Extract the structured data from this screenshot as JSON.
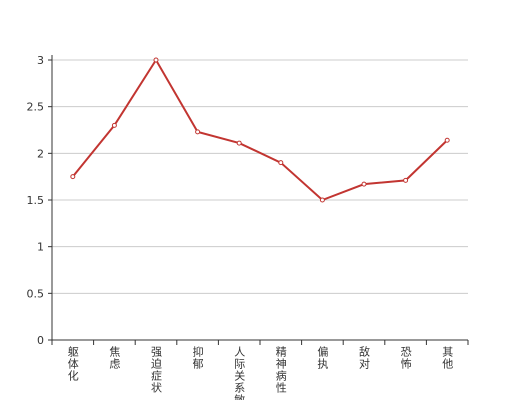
{
  "chart_data": {
    "type": "line",
    "categories": [
      "躯体化",
      "焦虑",
      "强迫症状",
      "抑郁",
      "人际关系敏感",
      "精神病性",
      "偏执",
      "敌对",
      "恐怖",
      "其他"
    ],
    "values": [
      1.75,
      2.3,
      3.0,
      2.23,
      2.11,
      1.9,
      1.5,
      1.67,
      1.71,
      2.14
    ],
    "color": "#c23531",
    "ylim": [
      0,
      3
    ],
    "yticks": [
      0,
      0.5,
      1,
      1.5,
      2,
      2.5,
      3
    ],
    "grid": true
  }
}
